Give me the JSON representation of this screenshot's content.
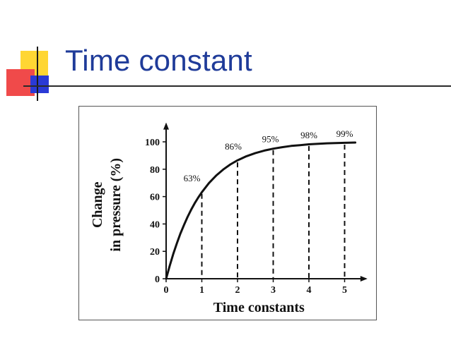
{
  "slide": {
    "title": "Time constant",
    "colors": {
      "title": "#1f3b99",
      "yellow": "#ffd633",
      "red": "#f04a4a",
      "blue": "#2a3ad6"
    }
  },
  "chart_data": {
    "type": "line",
    "xlabel": "Time constants",
    "ylabel_lines": [
      "Change",
      "in pressure (%)"
    ],
    "xlim": [
      0,
      5.6
    ],
    "ylim": [
      0,
      110
    ],
    "xticks": [
      0,
      1,
      2,
      3,
      4,
      5
    ],
    "yticks": [
      0,
      20,
      40,
      60,
      80,
      100
    ],
    "grid": false,
    "series": [
      {
        "x": [
          0,
          0.1,
          0.2,
          0.3,
          0.4,
          0.5,
          0.6,
          0.7,
          0.8,
          0.9,
          1.0,
          1.2,
          1.4,
          1.6,
          1.8,
          2.0,
          2.25,
          2.5,
          2.75,
          3.0,
          3.25,
          3.5,
          3.75,
          4.0,
          4.5,
          5.0,
          5.3
        ],
        "values": [
          0,
          9.5,
          18.1,
          25.9,
          33.0,
          39.3,
          45.1,
          50.3,
          55.1,
          59.3,
          63.2,
          69.9,
          75.3,
          79.8,
          83.5,
          86.5,
          89.5,
          91.8,
          93.6,
          95.0,
          96.1,
          97.0,
          97.6,
          98.2,
          98.9,
          99.3,
          99.5
        ]
      }
    ],
    "markers": [
      {
        "x": 1,
        "y": 63,
        "label": "63%"
      },
      {
        "x": 2,
        "y": 86,
        "label": "86%"
      },
      {
        "x": 3,
        "y": 95,
        "label": "95%"
      },
      {
        "x": 4,
        "y": 98,
        "label": "98%"
      },
      {
        "x": 5,
        "y": 99,
        "label": "99%"
      }
    ]
  }
}
